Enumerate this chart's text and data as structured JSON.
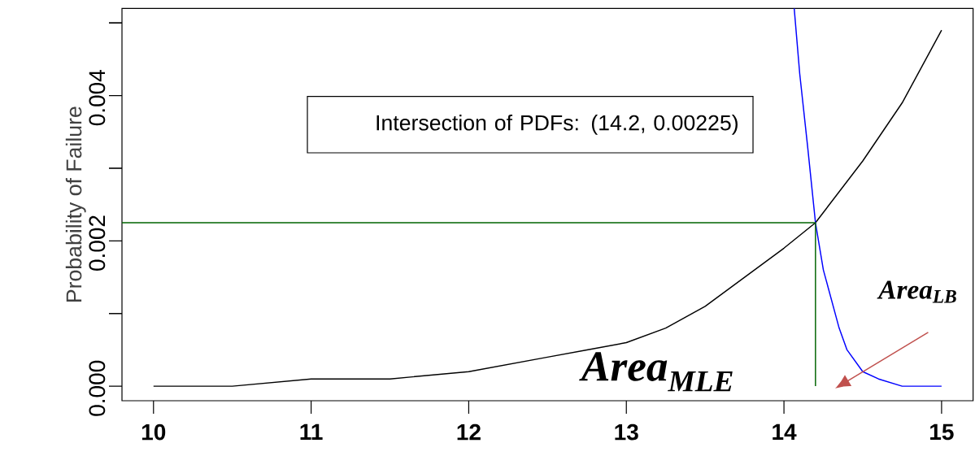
{
  "chart_data": {
    "type": "line",
    "ylabel": "Probability of Failure",
    "xlim": [
      9.8,
      15.2
    ],
    "ylim": [
      -0.0002,
      0.0052
    ],
    "xticks": [
      10,
      11,
      12,
      13,
      14,
      15
    ],
    "yticks": [
      {
        "value": 0,
        "label": "0.000"
      },
      {
        "value": 0.001,
        "label": null
      },
      {
        "value": 0.002,
        "label": "0.002"
      },
      {
        "value": 0.003,
        "label": null
      },
      {
        "value": 0.004,
        "label": "0.004"
      },
      {
        "value": 0.005,
        "label": null
      }
    ],
    "marker": "none",
    "line_style": "solid",
    "series": [
      {
        "color": "#000000",
        "x": [
          10,
          10.5,
          11,
          11.5,
          12,
          12.25,
          12.5,
          12.75,
          13,
          13.25,
          13.5,
          13.75,
          14,
          14.2,
          14.5,
          14.75,
          15
        ],
        "values": [
          0,
          0,
          0.0001,
          0.0001,
          0.0002,
          0.0003,
          0.0004,
          0.0005,
          0.0006,
          0.0008,
          0.0011,
          0.0015,
          0.0019,
          0.00225,
          0.0031,
          0.0039,
          0.0049
        ]
      },
      {
        "color": "#0000ff",
        "x": [
          14.065,
          14.1,
          14.15,
          14.2,
          14.25,
          14.3,
          14.35,
          14.4,
          14.5,
          14.6,
          14.75,
          15
        ],
        "values": [
          0.0052,
          0.0043,
          0.0033,
          0.00225,
          0.0016,
          0.0012,
          0.0008,
          0.0005,
          0.0002,
          0.0001,
          0,
          0
        ]
      },
      {
        "color": "#006400",
        "x": [
          9.8,
          14.2,
          14.2
        ],
        "values": [
          0.00225,
          0.00225,
          0
        ]
      }
    ],
    "annotations": [
      "Intersection of PDFs: (14.2, 0.00225)",
      "Area$_{MLE}$",
      "Area$_{LB}$"
    ]
  }
}
